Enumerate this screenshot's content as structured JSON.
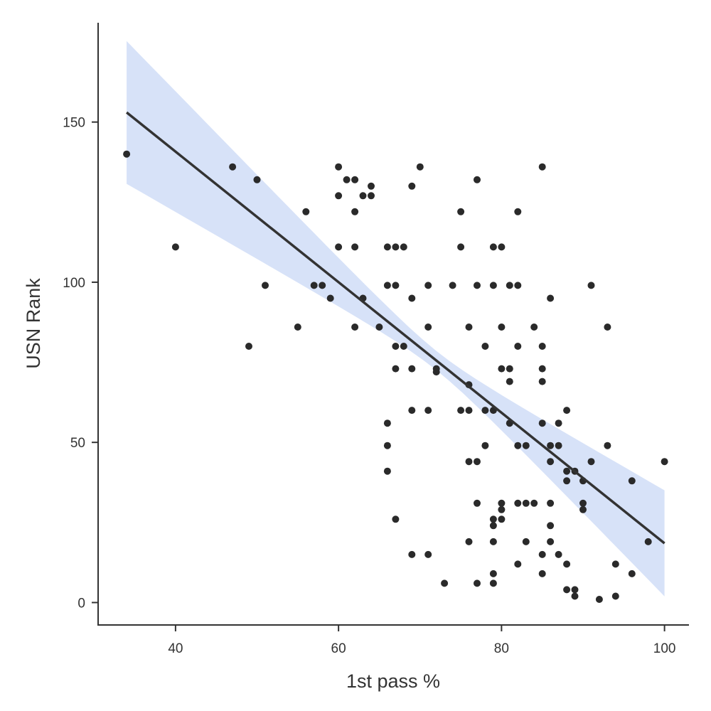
{
  "chart_data": {
    "type": "scatter",
    "xlabel": "1st pass %",
    "ylabel": "USN Rank",
    "xlim": [
      30.5,
      103
    ],
    "ylim": [
      -7,
      181
    ],
    "x_ticks": [
      40,
      60,
      80,
      100
    ],
    "y_ticks": [
      0,
      50,
      100,
      150
    ],
    "grid": false,
    "legend": "none",
    "colors": {
      "points": "#2a2a2a",
      "fit_line": "#333333",
      "band": "#c6d6f5"
    },
    "points": [
      [
        34,
        140
      ],
      [
        40,
        111
      ],
      [
        47,
        136
      ],
      [
        49,
        80
      ],
      [
        50,
        132
      ],
      [
        51,
        99
      ],
      [
        55,
        86
      ],
      [
        56,
        122
      ],
      [
        57,
        99
      ],
      [
        58,
        99
      ],
      [
        59,
        95
      ],
      [
        60,
        136
      ],
      [
        60,
        127
      ],
      [
        60,
        111
      ],
      [
        61,
        132
      ],
      [
        62,
        132
      ],
      [
        62,
        122
      ],
      [
        62,
        111
      ],
      [
        62,
        86
      ],
      [
        63,
        127
      ],
      [
        63,
        95
      ],
      [
        64,
        130
      ],
      [
        64,
        127
      ],
      [
        65,
        86
      ],
      [
        66,
        111
      ],
      [
        66,
        99
      ],
      [
        66,
        56
      ],
      [
        66,
        49
      ],
      [
        66,
        41
      ],
      [
        67,
        111
      ],
      [
        67,
        99
      ],
      [
        67,
        80
      ],
      [
        67,
        73
      ],
      [
        67,
        26
      ],
      [
        68,
        111
      ],
      [
        68,
        80
      ],
      [
        69,
        130
      ],
      [
        69,
        95
      ],
      [
        69,
        73
      ],
      [
        69,
        60
      ],
      [
        69,
        15
      ],
      [
        70,
        136
      ],
      [
        71,
        99
      ],
      [
        71,
        86
      ],
      [
        71,
        60
      ],
      [
        71,
        15
      ],
      [
        72,
        73
      ],
      [
        72,
        72
      ],
      [
        73,
        6
      ],
      [
        74,
        99
      ],
      [
        75,
        122
      ],
      [
        75,
        111
      ],
      [
        75,
        60
      ],
      [
        76,
        86
      ],
      [
        76,
        68
      ],
      [
        76,
        60
      ],
      [
        76,
        44
      ],
      [
        76,
        19
      ],
      [
        77,
        132
      ],
      [
        77,
        99
      ],
      [
        77,
        44
      ],
      [
        77,
        31
      ],
      [
        77,
        6
      ],
      [
        78,
        80
      ],
      [
        78,
        60
      ],
      [
        78,
        49
      ],
      [
        79,
        111
      ],
      [
        79,
        99
      ],
      [
        79,
        60
      ],
      [
        79,
        26
      ],
      [
        79,
        24
      ],
      [
        79,
        19
      ],
      [
        79,
        9
      ],
      [
        79,
        6
      ],
      [
        80,
        111
      ],
      [
        80,
        86
      ],
      [
        80,
        73
      ],
      [
        80,
        31
      ],
      [
        80,
        29
      ],
      [
        80,
        26
      ],
      [
        81,
        99
      ],
      [
        81,
        73
      ],
      [
        81,
        69
      ],
      [
        81,
        56
      ],
      [
        82,
        122
      ],
      [
        82,
        99
      ],
      [
        82,
        80
      ],
      [
        82,
        49
      ],
      [
        82,
        31
      ],
      [
        82,
        12
      ],
      [
        83,
        49
      ],
      [
        83,
        31
      ],
      [
        83,
        19
      ],
      [
        84,
        86
      ],
      [
        84,
        31
      ],
      [
        85,
        136
      ],
      [
        85,
        80
      ],
      [
        85,
        73
      ],
      [
        85,
        69
      ],
      [
        85,
        56
      ],
      [
        85,
        15
      ],
      [
        85,
        9
      ],
      [
        86,
        95
      ],
      [
        86,
        49
      ],
      [
        86,
        44
      ],
      [
        86,
        31
      ],
      [
        86,
        24
      ],
      [
        86,
        19
      ],
      [
        87,
        56
      ],
      [
        87,
        49
      ],
      [
        87,
        15
      ],
      [
        88,
        60
      ],
      [
        88,
        41
      ],
      [
        88,
        38
      ],
      [
        88,
        12
      ],
      [
        88,
        4
      ],
      [
        89,
        41
      ],
      [
        89,
        4
      ],
      [
        89,
        2
      ],
      [
        90,
        38
      ],
      [
        90,
        31
      ],
      [
        90,
        29
      ],
      [
        91,
        99
      ],
      [
        91,
        44
      ],
      [
        92,
        1
      ],
      [
        93,
        86
      ],
      [
        93,
        49
      ],
      [
        94,
        12
      ],
      [
        94,
        2
      ],
      [
        96,
        38
      ],
      [
        96,
        9
      ],
      [
        98,
        19
      ],
      [
        100,
        44
      ]
    ],
    "fit": {
      "x": [
        34,
        100
      ],
      "y": [
        153,
        18.5
      ]
    },
    "confidence_band": {
      "x": [
        34,
        100
      ],
      "upper": [
        172,
        30
      ],
      "lower": [
        134,
        6.5
      ]
    }
  }
}
